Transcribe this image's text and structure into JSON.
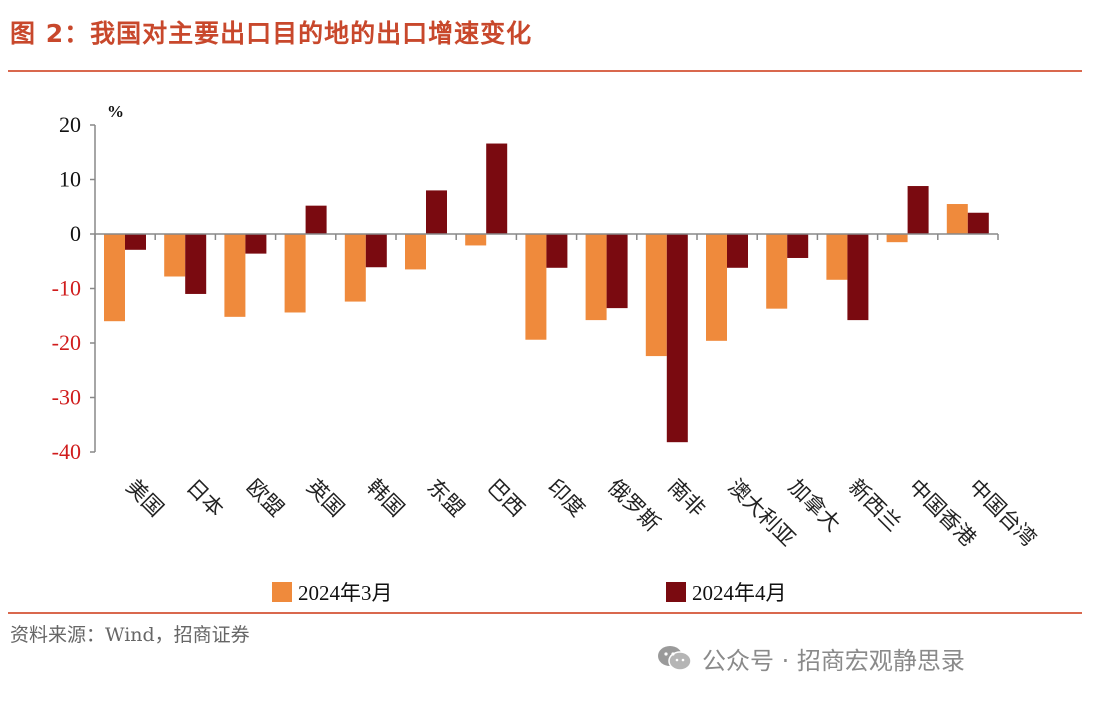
{
  "header": {
    "title": "图 2：我国对主要出口目的地的出口增速变化"
  },
  "footer": {
    "source": "资料来源：Wind，招商证券",
    "watermark": "公众号 · 招商宏观静思录"
  },
  "colors": {
    "title": "#c8482c",
    "rule": "#d9684e",
    "series1": "#ef8a3c",
    "series2": "#7a0a10",
    "neg_tick": "#d01c1c"
  },
  "chart_data": {
    "type": "bar",
    "title": "",
    "ylabel": "%",
    "xlabel": "",
    "ylim": [
      -40,
      20
    ],
    "yticks": [
      20,
      10,
      0,
      -10,
      -20,
      -30,
      -40
    ],
    "categories": [
      "美国",
      "日本",
      "欧盟",
      "英国",
      "韩国",
      "东盟",
      "巴西",
      "印度",
      "俄罗斯",
      "南非",
      "澳大利亚",
      "加拿大",
      "新西兰",
      "中国香港",
      "中国台湾"
    ],
    "series": [
      {
        "name": "2024年3月",
        "color": "#ef8a3c",
        "values": [
          -16.0,
          -7.8,
          -15.2,
          -14.4,
          -12.4,
          -6.5,
          -2.1,
          -19.4,
          -15.8,
          -22.4,
          -19.6,
          -13.7,
          -8.4,
          -1.5,
          5.5
        ]
      },
      {
        "name": "2024年4月",
        "color": "#7a0a10",
        "values": [
          -2.9,
          -11.0,
          -3.6,
          5.2,
          -6.1,
          8.0,
          16.6,
          -6.2,
          -13.6,
          -38.2,
          -6.2,
          -4.4,
          -15.8,
          8.8,
          3.9
        ]
      }
    ],
    "legend": "bottom-center"
  }
}
